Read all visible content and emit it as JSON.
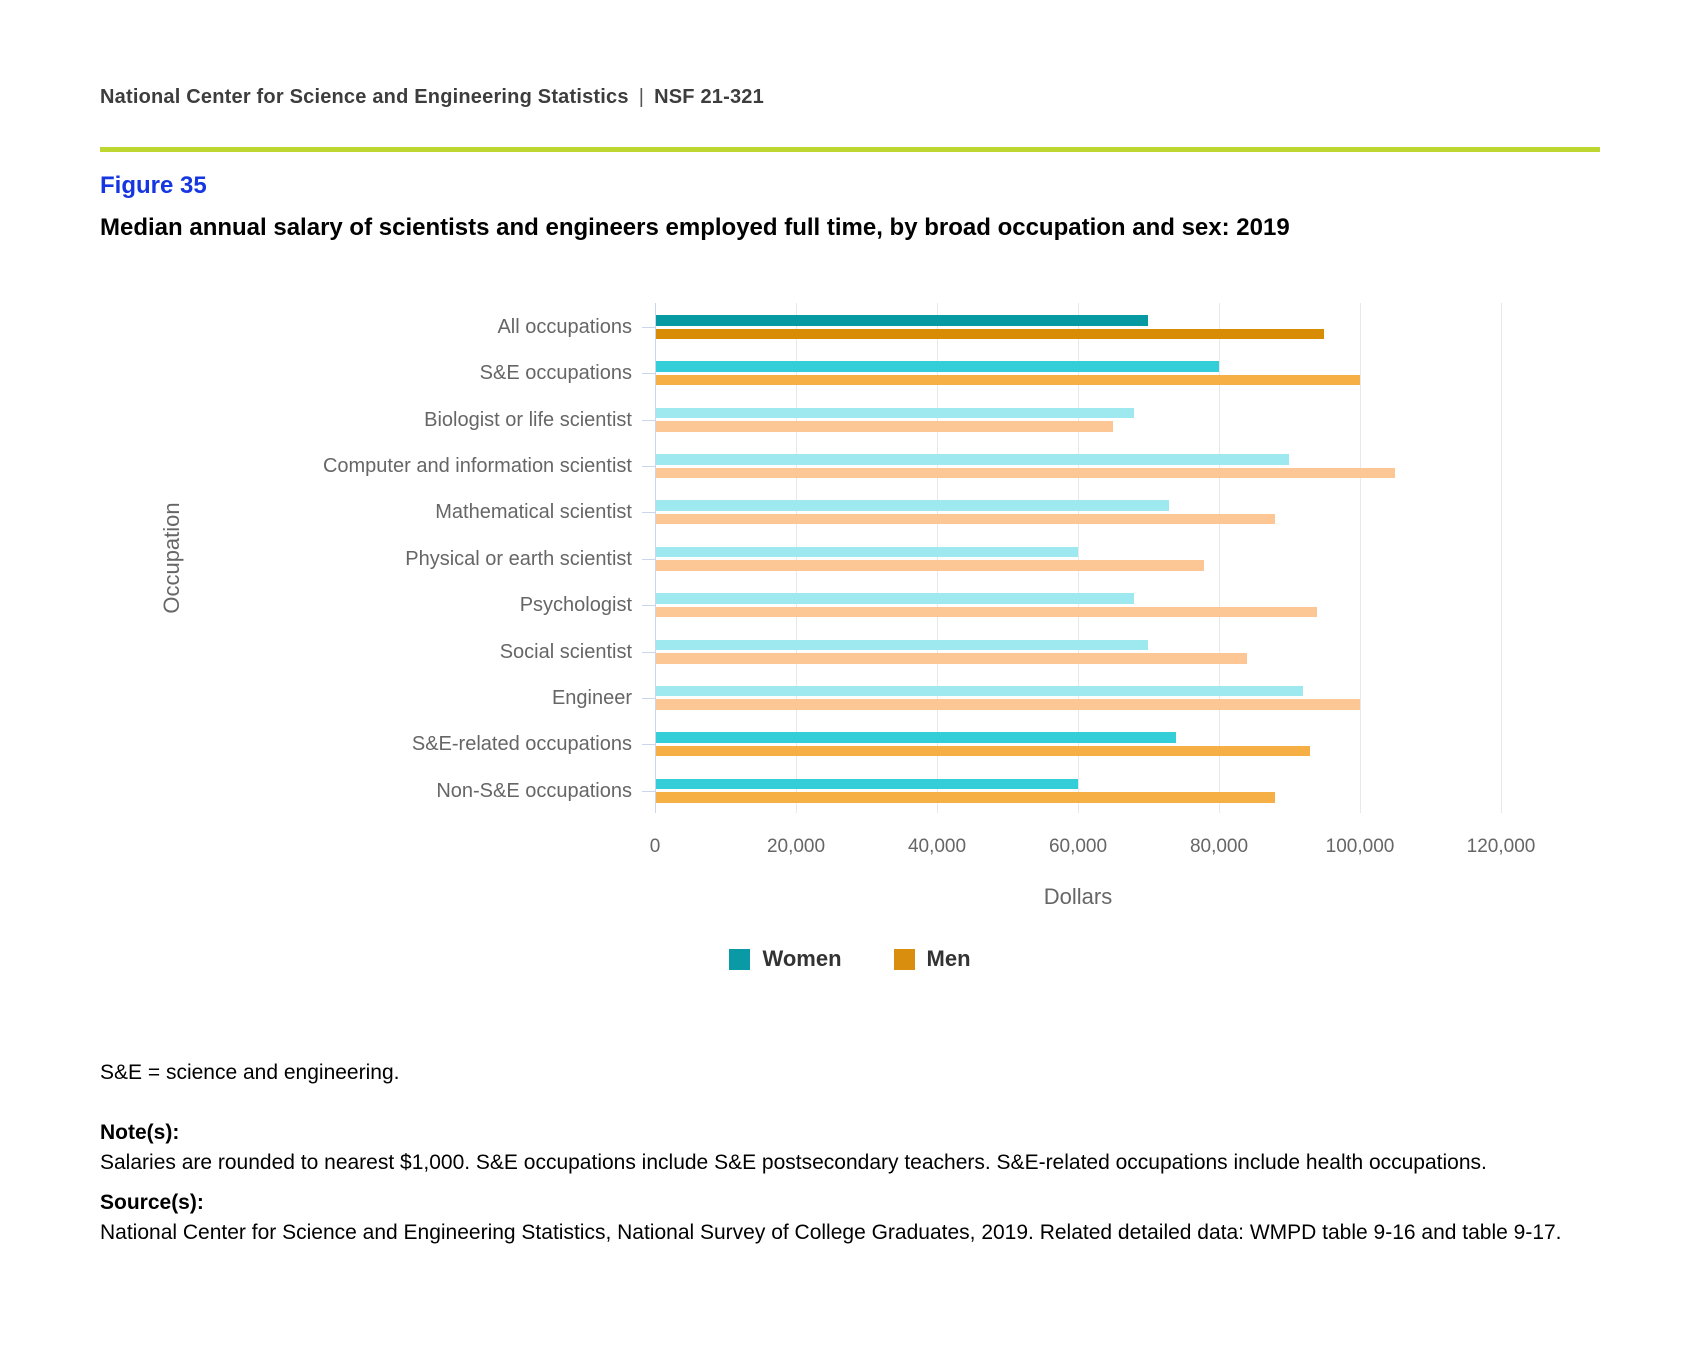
{
  "header": {
    "org": "National Center for Science and Engineering Statistics",
    "pipe": "|",
    "doc_id": "NSF 21-321"
  },
  "figure": {
    "label": "Figure 35",
    "title": "Median annual salary of scientists and engineers employed full time, by broad occupation and sex: 2019"
  },
  "chart_data": {
    "type": "bar",
    "orientation": "horizontal",
    "title": "Median annual salary of scientists and engineers employed full time, by broad occupation and sex: 2019",
    "xlabel": "Dollars",
    "ylabel": "Occupation",
    "xlim": [
      0,
      120000
    ],
    "xticks": [
      0,
      20000,
      40000,
      60000,
      80000,
      100000,
      120000
    ],
    "xtick_labels": [
      "0",
      "20,000",
      "40,000",
      "60,000",
      "80,000",
      "100,000",
      "120,000"
    ],
    "grid": true,
    "legend_position": "bottom",
    "categories": [
      "All occupations",
      "S&E occupations",
      "Biologist or life scientist",
      "Computer and information scientist",
      "Mathematical scientist",
      "Physical or earth scientist",
      "Psychologist",
      "Social scientist",
      "Engineer",
      "S&E-related occupations",
      "Non-S&E occupations"
    ],
    "series": [
      {
        "name": "Women",
        "key": "women",
        "values": [
          70000,
          80000,
          68000,
          90000,
          73000,
          60000,
          68000,
          70000,
          92000,
          74000,
          60000
        ]
      },
      {
        "name": "Men",
        "key": "men",
        "values": [
          95000,
          100000,
          65000,
          105000,
          88000,
          78000,
          94000,
          84000,
          100000,
          93000,
          88000
        ]
      }
    ],
    "category_tone": [
      "dark",
      "medium",
      "light",
      "light",
      "light",
      "light",
      "light",
      "light",
      "light",
      "medium",
      "medium"
    ],
    "colors": {
      "women": {
        "dark": "#089aa3",
        "medium": "#33ced8",
        "light": "#9ee9f0",
        "legend": "#0a9aa5"
      },
      "men": {
        "dark": "#d78c04",
        "medium": "#f5af45",
        "light": "#fdc795",
        "legend": "#da8e0e"
      },
      "axis": "#ccd6eb",
      "grid": "#e8e8e8"
    }
  },
  "footnotes": {
    "abbreviation": "S&E = science and engineering.",
    "notes_label": "Note(s):",
    "notes": "Salaries are rounded to nearest $1,000. S&E occupations include S&E postsecondary teachers. S&E-related occupations include health occupations.",
    "source_label": "Source(s):",
    "source": "National Center for Science and Engineering Statistics, National Survey of College Graduates, 2019. Related detailed data: WMPD table 9-16 and table 9-17."
  },
  "theme": {
    "rule_color": "#bed730",
    "figure_label_color": "#1636e0"
  }
}
